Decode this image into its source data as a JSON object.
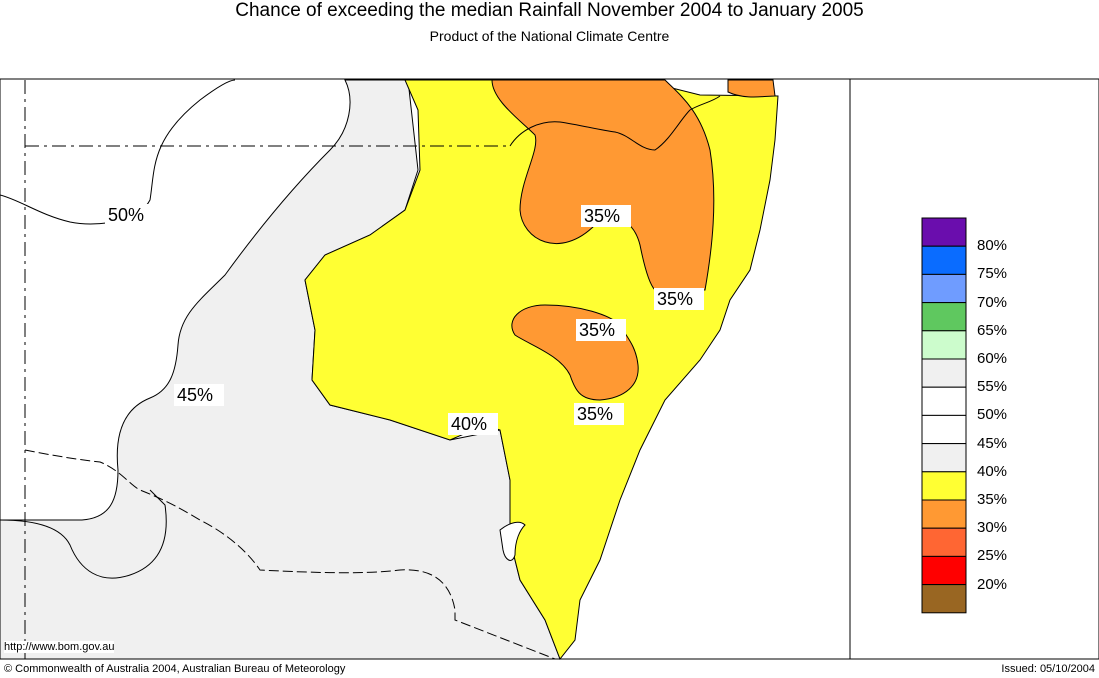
{
  "header": {
    "title": "Chance of exceeding the median Rainfall November 2004 to January 2005",
    "subtitle": "Product of the National Climate Centre"
  },
  "map": {
    "contour_labels": [
      "50%",
      "45%",
      "40%",
      "35%",
      "35%",
      "35%",
      "35%"
    ],
    "url": "http://www.bom.gov.au"
  },
  "legend": {
    "swatches": [
      {
        "color": "#6a0dad"
      },
      {
        "color": "#0a6cff"
      },
      {
        "color": "#6f9cff"
      },
      {
        "color": "#5fc85f"
      },
      {
        "color": "#ccfccc"
      },
      {
        "color": "#f0f0f0"
      },
      {
        "color": "#ffffff"
      },
      {
        "color": "#ffffff"
      },
      {
        "color": "#f0f0f0"
      },
      {
        "color": "#ffff33"
      },
      {
        "color": "#ff9933"
      },
      {
        "color": "#ff6633"
      },
      {
        "color": "#ff0000"
      },
      {
        "color": "#996622"
      }
    ],
    "labels": [
      "80%",
      "75%",
      "70%",
      "65%",
      "60%",
      "55%",
      "50%",
      "45%",
      "40%",
      "35%",
      "30%",
      "25%",
      "20%"
    ]
  },
  "footer": {
    "copyright": "© Commonwealth of Australia 2004, Australian Bureau of Meteorology",
    "issued": "Issued: 05/10/2004"
  }
}
